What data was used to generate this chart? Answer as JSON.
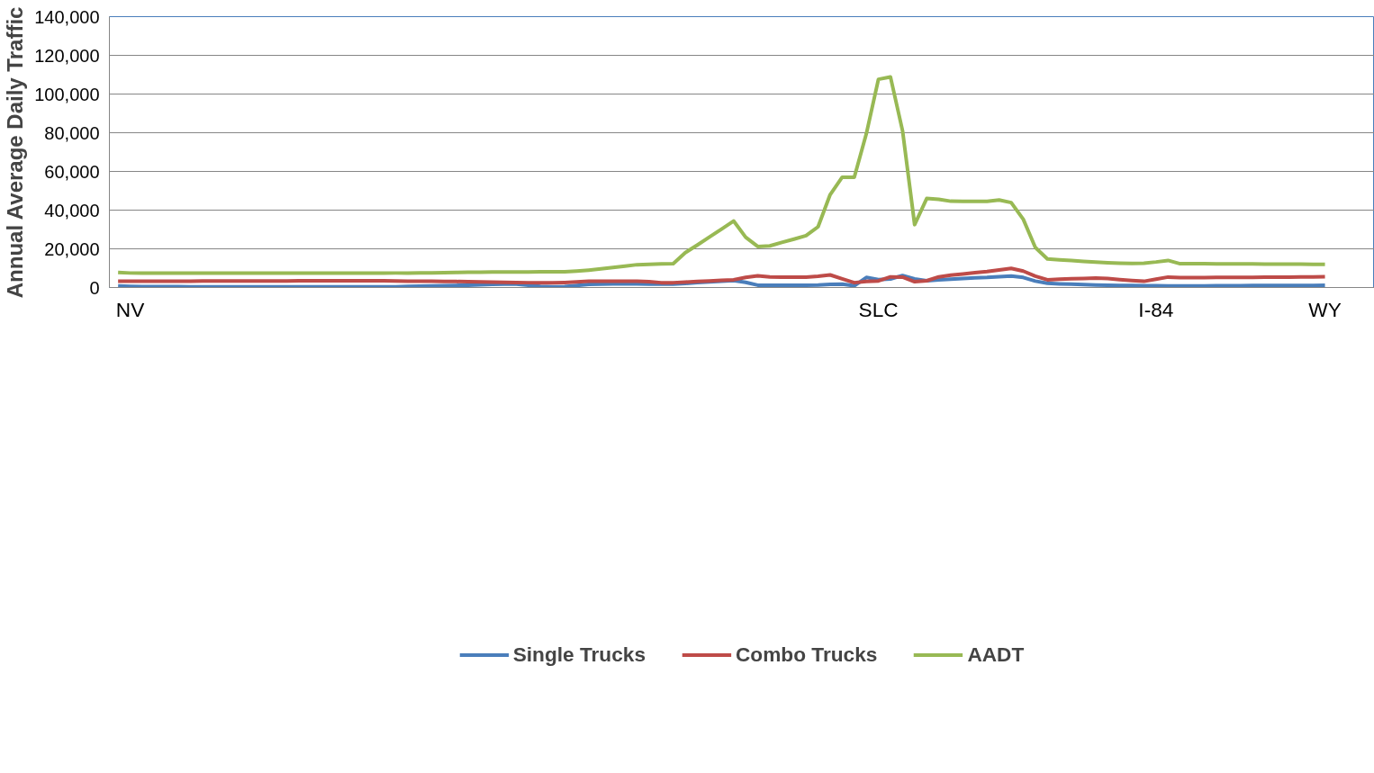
{
  "chart_data": {
    "type": "line",
    "ylabel": "Annual Average Daily Traffic",
    "categories": [
      null,
      "NV",
      null,
      null,
      null,
      null,
      null,
      null,
      null,
      null,
      null,
      null,
      null,
      null,
      null,
      null,
      null,
      null,
      null,
      null,
      null,
      null,
      null,
      null,
      null,
      null,
      null,
      null,
      null,
      null,
      null,
      null,
      null,
      null,
      null,
      null,
      null,
      null,
      null,
      null,
      null,
      null,
      null,
      null,
      null,
      null,
      null,
      null,
      null,
      null,
      null,
      null,
      null,
      null,
      null,
      null,
      null,
      null,
      null,
      null,
      null,
      null,
      null,
      "SLC",
      null,
      null,
      null,
      null,
      null,
      null,
      null,
      null,
      null,
      null,
      null,
      null,
      null,
      null,
      null,
      null,
      null,
      null,
      null,
      null,
      null,
      null,
      "I-84",
      null,
      null,
      null,
      null,
      null,
      null,
      null,
      null,
      null,
      null,
      null,
      null,
      null,
      "WY"
    ],
    "series": [
      {
        "name": "Single Trucks",
        "color": "#4a7ebb",
        "values": [
          800,
          600,
          500,
          500,
          500,
          500,
          400,
          400,
          400,
          400,
          400,
          400,
          300,
          300,
          300,
          300,
          300,
          300,
          300,
          300,
          300,
          300,
          300,
          400,
          600,
          700,
          800,
          900,
          1100,
          1200,
          1400,
          1600,
          1800,
          1700,
          1200,
          600,
          400,
          500,
          1000,
          1600,
          1800,
          1900,
          1900,
          1900,
          1800,
          1700,
          1700,
          2100,
          2500,
          2900,
          3300,
          3600,
          2700,
          1200,
          1200,
          1200,
          1200,
          1200,
          1300,
          1600,
          1700,
          900,
          5200,
          4100,
          4400,
          6200,
          4400,
          3500,
          3900,
          4300,
          4600,
          5000,
          5200,
          5600,
          5900,
          5200,
          3300,
          2200,
          1900,
          1700,
          1500,
          1300,
          1200,
          1100,
          1000,
          900,
          900,
          800,
          800,
          800,
          800,
          900,
          900,
          900,
          1000,
          1000,
          1000,
          1100,
          1100,
          1100,
          1200
        ]
      },
      {
        "name": "Combo Trucks",
        "color": "#be4b48",
        "values": [
          3300,
          3300,
          3300,
          3300,
          3300,
          3300,
          3300,
          3400,
          3400,
          3400,
          3400,
          3400,
          3400,
          3400,
          3400,
          3500,
          3500,
          3500,
          3500,
          3500,
          3500,
          3500,
          3500,
          3400,
          3300,
          3200,
          3200,
          3100,
          3100,
          3000,
          2900,
          2800,
          2700,
          2600,
          2500,
          2500,
          2400,
          2600,
          2900,
          3200,
          3300,
          3300,
          3300,
          3300,
          3000,
          2500,
          2500,
          2800,
          3100,
          3400,
          3700,
          4000,
          5200,
          6000,
          5500,
          5400,
          5400,
          5300,
          5800,
          6500,
          4500,
          2500,
          3100,
          3400,
          5500,
          5400,
          3000,
          3500,
          5500,
          6400,
          7000,
          7700,
          8300,
          9100,
          9900,
          8500,
          5900,
          4000,
          4300,
          4500,
          4700,
          4900,
          4600,
          4100,
          3600,
          3200,
          4300,
          5400,
          5100,
          5100,
          5100,
          5200,
          5200,
          5200,
          5200,
          5300,
          5300,
          5400,
          5500,
          5500,
          5600
        ]
      },
      {
        "name": "AADT",
        "color": "#98b954",
        "values": [
          7800,
          7500,
          7400,
          7400,
          7400,
          7400,
          7400,
          7400,
          7400,
          7400,
          7400,
          7400,
          7400,
          7400,
          7400,
          7400,
          7400,
          7400,
          7400,
          7400,
          7400,
          7400,
          7400,
          7500,
          7500,
          7600,
          7600,
          7700,
          7800,
          7900,
          7900,
          8000,
          8000,
          8000,
          8000,
          8100,
          8100,
          8100,
          8500,
          9000,
          9600,
          10300,
          11000,
          11800,
          12000,
          12200,
          12300,
          18000,
          22000,
          26100,
          30200,
          34400,
          26000,
          21200,
          21500,
          23300,
          25000,
          26800,
          31400,
          48000,
          57000,
          57000,
          79500,
          107600,
          108800,
          81000,
          32500,
          46000,
          45600,
          44600,
          44500,
          44500,
          44500,
          45200,
          43900,
          35300,
          20700,
          14800,
          14300,
          13900,
          13500,
          13100,
          12800,
          12600,
          12400,
          12600,
          13200,
          14000,
          12300,
          12300,
          12300,
          12200,
          12200,
          12200,
          12200,
          12100,
          12100,
          12100,
          12100,
          12000,
          12000
        ]
      }
    ],
    "ylim": [
      0,
      140000
    ],
    "yticks": [
      {
        "value": 0,
        "label": "0"
      },
      {
        "value": 20000,
        "label": "20,000"
      },
      {
        "value": 40000,
        "label": "40,000"
      },
      {
        "value": 60000,
        "label": "60,000"
      },
      {
        "value": 80000,
        "label": "80,000"
      },
      {
        "value": 100000,
        "label": "100,000"
      },
      {
        "value": 120000,
        "label": "120,000"
      },
      {
        "value": 140000,
        "label": "140,000"
      }
    ],
    "grid": "y",
    "legend": "bottom",
    "marker": "none",
    "line_style": "solid"
  }
}
